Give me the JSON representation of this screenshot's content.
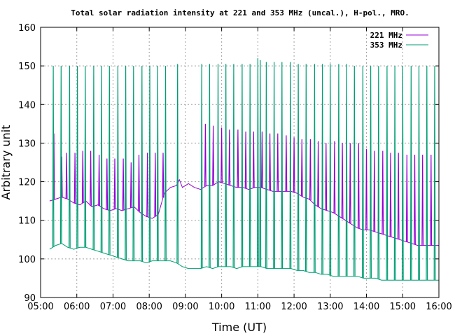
{
  "chart_data": {
    "type": "line",
    "title": "Total solar radiation intensity at 221 and 353 MHz (uncal.), H-pol., MRO.",
    "xlabel": "Time (UT)",
    "ylabel": "Arbitrary unit",
    "xlim": [
      "05:00",
      "16:00"
    ],
    "ylim": [
      90,
      160
    ],
    "xticks": [
      "05:00",
      "06:00",
      "07:00",
      "08:00",
      "09:00",
      "10:00",
      "11:00",
      "12:00",
      "13:00",
      "14:00",
      "15:00",
      "16:00"
    ],
    "yticks": [
      90,
      100,
      110,
      120,
      130,
      140,
      150,
      160
    ],
    "grid": true,
    "legend_position": "top-right",
    "series": [
      {
        "name": "221 MHz",
        "color": "#9400d3",
        "x": [
          "05:15",
          "05:25",
          "05:35",
          "05:45",
          "05:55",
          "06:05",
          "06:15",
          "06:25",
          "06:35",
          "06:45",
          "06:55",
          "07:05",
          "07:15",
          "07:25",
          "07:35",
          "07:45",
          "07:55",
          "08:05",
          "08:15",
          "08:25",
          "08:35",
          "08:45",
          "08:50",
          "08:55",
          "09:05",
          "09:15",
          "09:25",
          "09:35",
          "09:45",
          "09:55",
          "10:05",
          "10:15",
          "10:25",
          "10:35",
          "10:45",
          "10:55",
          "11:05",
          "11:15",
          "11:25",
          "11:35",
          "11:45",
          "11:55",
          "12:05",
          "12:15",
          "12:25",
          "12:35",
          "12:45",
          "12:55",
          "13:05",
          "13:15",
          "13:25",
          "13:35",
          "13:45",
          "13:55",
          "14:05",
          "14:15",
          "14:25",
          "14:35",
          "14:45",
          "14:55",
          "15:05",
          "15:15",
          "15:25",
          "15:35",
          "15:45",
          "15:55",
          "16:00"
        ],
        "values": [
          115,
          115.5,
          116,
          115.5,
          114.5,
          114,
          115,
          113.5,
          114,
          113,
          112.5,
          113,
          112.5,
          113,
          113.5,
          112,
          111,
          110.5,
          111.5,
          117,
          118.5,
          119,
          120.5,
          118.5,
          119.5,
          118.5,
          118,
          119,
          119,
          120,
          119.5,
          119,
          118.5,
          118.5,
          118,
          118.5,
          118.5,
          118,
          117.5,
          117.5,
          117.5,
          117.5,
          117,
          116,
          115.5,
          114,
          113,
          112.5,
          112,
          111,
          110,
          109,
          108,
          107.5,
          107.5,
          107,
          106.5,
          106,
          105.5,
          105,
          104.5,
          104,
          103.5,
          103.5,
          103.5,
          103.5,
          103.5
        ],
        "spikes": [
          {
            "time": "05:22",
            "peak": 132.5
          },
          {
            "time": "05:35",
            "peak": 126.5
          },
          {
            "time": "05:43",
            "peak": 127.5
          },
          {
            "time": "05:57",
            "peak": 127.5
          },
          {
            "time": "06:10",
            "peak": 128
          },
          {
            "time": "06:23",
            "peak": 128
          },
          {
            "time": "06:37",
            "peak": 127
          },
          {
            "time": "06:50",
            "peak": 126
          },
          {
            "time": "07:03",
            "peak": 126
          },
          {
            "time": "07:17",
            "peak": 126
          },
          {
            "time": "07:30",
            "peak": 125
          },
          {
            "time": "07:43",
            "peak": 127
          },
          {
            "time": "07:57",
            "peak": 127.5
          },
          {
            "time": "08:10",
            "peak": 127.5
          },
          {
            "time": "08:23",
            "peak": 127.5
          },
          {
            "time": "08:47",
            "peak": 121
          },
          {
            "time": "09:33",
            "peak": 135
          },
          {
            "time": "09:46",
            "peak": 134.5
          },
          {
            "time": "10:00",
            "peak": 134
          },
          {
            "time": "10:13",
            "peak": 133.5
          },
          {
            "time": "10:27",
            "peak": 133.5
          },
          {
            "time": "10:40",
            "peak": 133
          },
          {
            "time": "10:53",
            "peak": 133
          },
          {
            "time": "11:07",
            "peak": 133
          },
          {
            "time": "11:20",
            "peak": 132.5
          },
          {
            "time": "11:33",
            "peak": 132.5
          },
          {
            "time": "11:47",
            "peak": 132
          },
          {
            "time": "12:00",
            "peak": 131.5
          },
          {
            "time": "12:13",
            "peak": 131
          },
          {
            "time": "12:27",
            "peak": 131
          },
          {
            "time": "12:40",
            "peak": 130.5
          },
          {
            "time": "12:53",
            "peak": 130
          },
          {
            "time": "13:07",
            "peak": 130.5
          },
          {
            "time": "13:20",
            "peak": 130
          },
          {
            "time": "13:33",
            "peak": 130
          },
          {
            "time": "13:47",
            "peak": 130
          },
          {
            "time": "14:00",
            "peak": 128.5
          },
          {
            "time": "14:13",
            "peak": 128
          },
          {
            "time": "14:27",
            "peak": 128
          },
          {
            "time": "14:40",
            "peak": 127.5
          },
          {
            "time": "14:53",
            "peak": 127.5
          },
          {
            "time": "15:07",
            "peak": 127
          },
          {
            "time": "15:20",
            "peak": 127
          },
          {
            "time": "15:33",
            "peak": 127
          },
          {
            "time": "15:47",
            "peak": 127
          }
        ]
      },
      {
        "name": "353 MHz",
        "color": "#009e73",
        "x": [
          "05:15",
          "05:25",
          "05:35",
          "05:45",
          "05:55",
          "06:05",
          "06:15",
          "06:25",
          "06:35",
          "06:45",
          "06:55",
          "07:05",
          "07:15",
          "07:25",
          "07:35",
          "07:45",
          "07:55",
          "08:05",
          "08:15",
          "08:25",
          "08:35",
          "08:45",
          "08:55",
          "09:05",
          "09:15",
          "09:25",
          "09:35",
          "09:45",
          "09:55",
          "10:05",
          "10:15",
          "10:25",
          "10:35",
          "10:45",
          "10:55",
          "11:05",
          "11:15",
          "11:25",
          "11:35",
          "11:45",
          "11:55",
          "12:05",
          "12:15",
          "12:25",
          "12:35",
          "12:45",
          "12:55",
          "13:05",
          "13:15",
          "13:25",
          "13:35",
          "13:45",
          "13:55",
          "14:05",
          "14:15",
          "14:25",
          "14:35",
          "14:45",
          "14:55",
          "15:05",
          "15:15",
          "15:25",
          "15:35",
          "15:45",
          "15:55",
          "16:00"
        ],
        "values": [
          102.5,
          103.5,
          104,
          103,
          102.5,
          103,
          103,
          102.5,
          102,
          101.5,
          101,
          100.5,
          100,
          99.5,
          99.5,
          99.5,
          99,
          99.5,
          99.5,
          99.5,
          99.5,
          99,
          98,
          97.5,
          97.5,
          97.5,
          98,
          97.5,
          98,
          98,
          98,
          97.5,
          98,
          98,
          98,
          98,
          97.5,
          97.5,
          97.5,
          97.5,
          97.5,
          97,
          97,
          96.5,
          96.5,
          96,
          96,
          95.5,
          95.5,
          95.5,
          95.5,
          95.5,
          95,
          95,
          95,
          94.5,
          94.5,
          94.5,
          94.5,
          94.5,
          94.5,
          94.5,
          94.5,
          94.5,
          94.5,
          94.5
        ],
        "spikes": [
          {
            "time": "05:21",
            "peak": 150
          },
          {
            "time": "05:34",
            "peak": 150
          },
          {
            "time": "05:48",
            "peak": 150
          },
          {
            "time": "06:01",
            "peak": 150
          },
          {
            "time": "06:14",
            "peak": 150
          },
          {
            "time": "06:28",
            "peak": 150
          },
          {
            "time": "06:41",
            "peak": 150
          },
          {
            "time": "06:54",
            "peak": 150
          },
          {
            "time": "07:08",
            "peak": 150
          },
          {
            "time": "07:21",
            "peak": 150
          },
          {
            "time": "07:34",
            "peak": 150
          },
          {
            "time": "07:48",
            "peak": 150
          },
          {
            "time": "08:01",
            "peak": 150
          },
          {
            "time": "08:14",
            "peak": 150
          },
          {
            "time": "08:27",
            "peak": 150
          },
          {
            "time": "08:47",
            "peak": 150.5
          },
          {
            "time": "09:27",
            "peak": 150.5
          },
          {
            "time": "09:40",
            "peak": 150.5
          },
          {
            "time": "09:54",
            "peak": 150.5
          },
          {
            "time": "10:07",
            "peak": 150.5
          },
          {
            "time": "10:20",
            "peak": 150.5
          },
          {
            "time": "10:34",
            "peak": 150.5
          },
          {
            "time": "10:47",
            "peak": 150.5
          },
          {
            "time": "11:00",
            "peak": 152
          },
          {
            "time": "11:04",
            "peak": 151.5
          },
          {
            "time": "11:14",
            "peak": 151
          },
          {
            "time": "11:27",
            "peak": 151
          },
          {
            "time": "11:40",
            "peak": 151
          },
          {
            "time": "11:54",
            "peak": 151
          },
          {
            "time": "12:07",
            "peak": 150.5
          },
          {
            "time": "12:20",
            "peak": 150.5
          },
          {
            "time": "12:34",
            "peak": 150.5
          },
          {
            "time": "12:47",
            "peak": 150.5
          },
          {
            "time": "13:00",
            "peak": 150.5
          },
          {
            "time": "13:14",
            "peak": 150.5
          },
          {
            "time": "13:27",
            "peak": 150.5
          },
          {
            "time": "13:40",
            "peak": 150
          },
          {
            "time": "13:54",
            "peak": 150
          },
          {
            "time": "14:07",
            "peak": 150
          },
          {
            "time": "14:20",
            "peak": 150
          },
          {
            "time": "14:34",
            "peak": 150
          },
          {
            "time": "14:47",
            "peak": 150
          },
          {
            "time": "15:00",
            "peak": 150
          },
          {
            "time": "15:14",
            "peak": 150
          },
          {
            "time": "15:27",
            "peak": 150
          },
          {
            "time": "15:40",
            "peak": 150
          },
          {
            "time": "15:53",
            "peak": 150
          }
        ]
      }
    ]
  }
}
